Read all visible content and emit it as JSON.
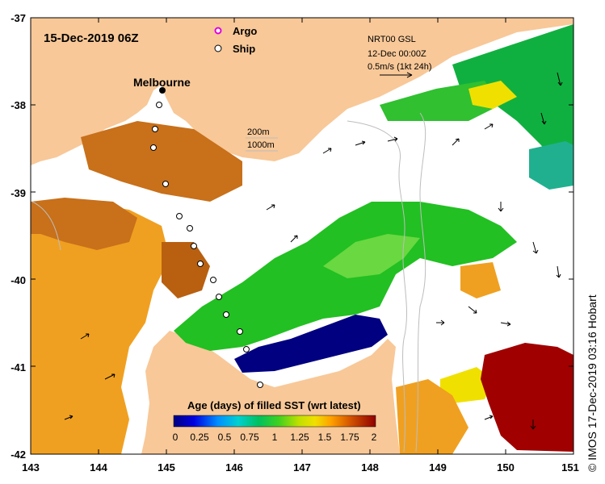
{
  "title": "15-Dec-2019 06Z",
  "legend": {
    "argo_label": "Argo",
    "ship_label": "Ship",
    "argo_color": "#e000e0",
    "ship_color": "#000000"
  },
  "current": {
    "product": "NRT00 GSL",
    "date": "12-Dec 00:00Z",
    "scale": "0.5m/s (1kt 24h)"
  },
  "bathy": {
    "label_200": "200m",
    "label_1000": "1000m"
  },
  "city": {
    "name": "Melbourne"
  },
  "colorbar": {
    "title": "Age (days) of filled SST (wrt latest)",
    "ticks": [
      "0",
      "0.25",
      "0.5",
      "0.75",
      "1",
      "1.25",
      "1.5",
      "1.75",
      "2"
    ],
    "colors": [
      "#000080",
      "#0000d0",
      "#0060ff",
      "#00c0ff",
      "#00c8a0",
      "#00c040",
      "#40d020",
      "#a0e000",
      "#e8e800",
      "#ffb000",
      "#e07000",
      "#c04000",
      "#900000"
    ]
  },
  "axes": {
    "x_ticks": [
      "143",
      "144",
      "145",
      "146",
      "147",
      "148",
      "149",
      "150",
      "151"
    ],
    "y_ticks": [
      "-37",
      "-38",
      "-39",
      "-40",
      "-41",
      "-42"
    ]
  },
  "colors": {
    "land": "#f8c898",
    "ocean": "#ffffff",
    "sst_green": "#22c022",
    "sst_navy": "#000080",
    "sst_orange": "#f0a020",
    "sst_brown": "#c8701a",
    "sst_darkred": "#a00000",
    "sst_yellow": "#f0e000"
  },
  "credit": "© IMOS 17-Dec-2019 03:16 Hobart"
}
